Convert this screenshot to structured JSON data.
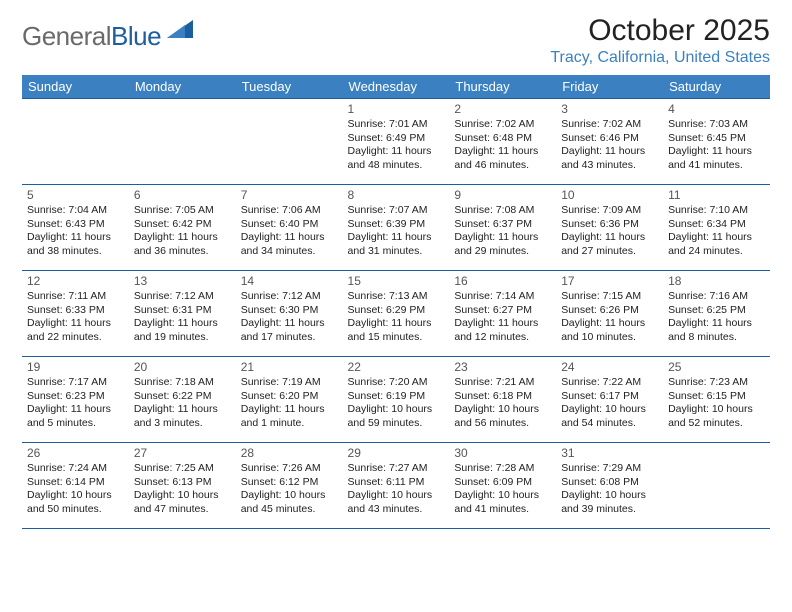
{
  "logo": {
    "general": "General",
    "blue": "Blue"
  },
  "title": "October 2025",
  "location": "Tracy, California, United States",
  "colors": {
    "header_bg": "#3b81c2",
    "border": "#1d5e9e",
    "logo_gray": "#6a6a6a",
    "logo_blue": "#1d5e9e",
    "location": "#3b81c2"
  },
  "dayHeaders": [
    "Sunday",
    "Monday",
    "Tuesday",
    "Wednesday",
    "Thursday",
    "Friday",
    "Saturday"
  ],
  "weeks": [
    [
      null,
      null,
      null,
      {
        "n": "1",
        "sr": "7:01 AM",
        "ss": "6:49 PM",
        "dl": "11 hours and 48 minutes."
      },
      {
        "n": "2",
        "sr": "7:02 AM",
        "ss": "6:48 PM",
        "dl": "11 hours and 46 minutes."
      },
      {
        "n": "3",
        "sr": "7:02 AM",
        "ss": "6:46 PM",
        "dl": "11 hours and 43 minutes."
      },
      {
        "n": "4",
        "sr": "7:03 AM",
        "ss": "6:45 PM",
        "dl": "11 hours and 41 minutes."
      }
    ],
    [
      {
        "n": "5",
        "sr": "7:04 AM",
        "ss": "6:43 PM",
        "dl": "11 hours and 38 minutes."
      },
      {
        "n": "6",
        "sr": "7:05 AM",
        "ss": "6:42 PM",
        "dl": "11 hours and 36 minutes."
      },
      {
        "n": "7",
        "sr": "7:06 AM",
        "ss": "6:40 PM",
        "dl": "11 hours and 34 minutes."
      },
      {
        "n": "8",
        "sr": "7:07 AM",
        "ss": "6:39 PM",
        "dl": "11 hours and 31 minutes."
      },
      {
        "n": "9",
        "sr": "7:08 AM",
        "ss": "6:37 PM",
        "dl": "11 hours and 29 minutes."
      },
      {
        "n": "10",
        "sr": "7:09 AM",
        "ss": "6:36 PM",
        "dl": "11 hours and 27 minutes."
      },
      {
        "n": "11",
        "sr": "7:10 AM",
        "ss": "6:34 PM",
        "dl": "11 hours and 24 minutes."
      }
    ],
    [
      {
        "n": "12",
        "sr": "7:11 AM",
        "ss": "6:33 PM",
        "dl": "11 hours and 22 minutes."
      },
      {
        "n": "13",
        "sr": "7:12 AM",
        "ss": "6:31 PM",
        "dl": "11 hours and 19 minutes."
      },
      {
        "n": "14",
        "sr": "7:12 AM",
        "ss": "6:30 PM",
        "dl": "11 hours and 17 minutes."
      },
      {
        "n": "15",
        "sr": "7:13 AM",
        "ss": "6:29 PM",
        "dl": "11 hours and 15 minutes."
      },
      {
        "n": "16",
        "sr": "7:14 AM",
        "ss": "6:27 PM",
        "dl": "11 hours and 12 minutes."
      },
      {
        "n": "17",
        "sr": "7:15 AM",
        "ss": "6:26 PM",
        "dl": "11 hours and 10 minutes."
      },
      {
        "n": "18",
        "sr": "7:16 AM",
        "ss": "6:25 PM",
        "dl": "11 hours and 8 minutes."
      }
    ],
    [
      {
        "n": "19",
        "sr": "7:17 AM",
        "ss": "6:23 PM",
        "dl": "11 hours and 5 minutes."
      },
      {
        "n": "20",
        "sr": "7:18 AM",
        "ss": "6:22 PM",
        "dl": "11 hours and 3 minutes."
      },
      {
        "n": "21",
        "sr": "7:19 AM",
        "ss": "6:20 PM",
        "dl": "11 hours and 1 minute."
      },
      {
        "n": "22",
        "sr": "7:20 AM",
        "ss": "6:19 PM",
        "dl": "10 hours and 59 minutes."
      },
      {
        "n": "23",
        "sr": "7:21 AM",
        "ss": "6:18 PM",
        "dl": "10 hours and 56 minutes."
      },
      {
        "n": "24",
        "sr": "7:22 AM",
        "ss": "6:17 PM",
        "dl": "10 hours and 54 minutes."
      },
      {
        "n": "25",
        "sr": "7:23 AM",
        "ss": "6:15 PM",
        "dl": "10 hours and 52 minutes."
      }
    ],
    [
      {
        "n": "26",
        "sr": "7:24 AM",
        "ss": "6:14 PM",
        "dl": "10 hours and 50 minutes."
      },
      {
        "n": "27",
        "sr": "7:25 AM",
        "ss": "6:13 PM",
        "dl": "10 hours and 47 minutes."
      },
      {
        "n": "28",
        "sr": "7:26 AM",
        "ss": "6:12 PM",
        "dl": "10 hours and 45 minutes."
      },
      {
        "n": "29",
        "sr": "7:27 AM",
        "ss": "6:11 PM",
        "dl": "10 hours and 43 minutes."
      },
      {
        "n": "30",
        "sr": "7:28 AM",
        "ss": "6:09 PM",
        "dl": "10 hours and 41 minutes."
      },
      {
        "n": "31",
        "sr": "7:29 AM",
        "ss": "6:08 PM",
        "dl": "10 hours and 39 minutes."
      },
      null
    ]
  ],
  "labels": {
    "sunrise": "Sunrise: ",
    "sunset": "Sunset: ",
    "daylight": "Daylight: "
  }
}
